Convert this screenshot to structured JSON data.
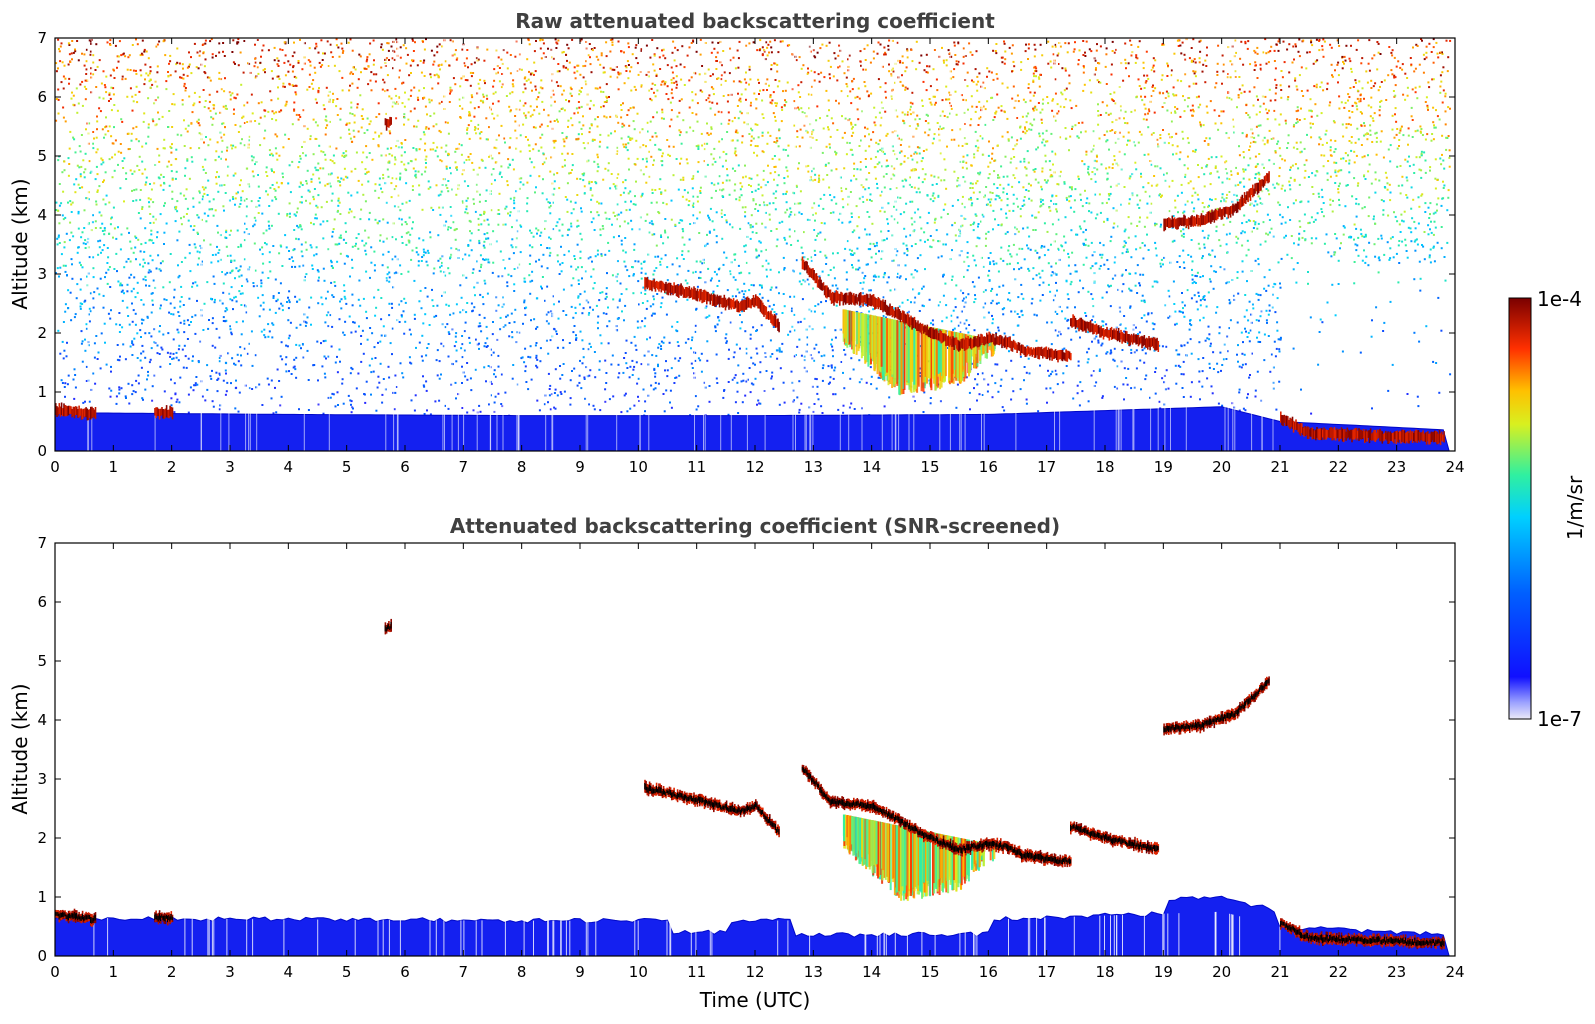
{
  "chart_data": [
    {
      "type": "heatmap",
      "title": "Raw attenuated backscattering coefficient",
      "xlabel": "",
      "ylabel": "Altitude (km)",
      "xlim": [
        0,
        24
      ],
      "ylim": [
        0,
        7
      ],
      "x_ticks": [
        "0",
        "1",
        "2",
        "3",
        "4",
        "5",
        "6",
        "7",
        "8",
        "9",
        "10",
        "11",
        "12",
        "13",
        "14",
        "15",
        "16",
        "17",
        "18",
        "19",
        "20",
        "21",
        "22",
        "23",
        "24"
      ],
      "y_ticks": [
        "0",
        "1",
        "2",
        "3",
        "4",
        "5",
        "6",
        "7"
      ],
      "features": {
        "boundary_layer": [
          [
            0,
            0.65
          ],
          [
            4,
            0.62
          ],
          [
            8,
            0.6
          ],
          [
            12,
            0.6
          ],
          [
            16,
            0.62
          ],
          [
            20,
            0.75
          ],
          [
            21,
            0.5
          ],
          [
            24,
            0.35
          ]
        ],
        "layers": [
          {
            "name": "early-aerosol",
            "points": [
              [
                0,
                0.7
              ],
              [
                0.7,
                0.62
              ]
            ]
          },
          {
            "name": "aerosol-2h",
            "points": [
              [
                1.7,
                0.65
              ],
              [
                2.0,
                0.65
              ]
            ]
          },
          {
            "name": "isolated-5.5km",
            "points": [
              [
                5.65,
                5.55
              ],
              [
                5.75,
                5.58
              ]
            ]
          },
          {
            "name": "cloud-10-12h",
            "points": [
              [
                10.1,
                2.85
              ],
              [
                11.0,
                2.65
              ],
              [
                11.7,
                2.45
              ],
              [
                12.0,
                2.55
              ],
              [
                12.4,
                2.1
              ]
            ]
          },
          {
            "name": "cloud-13-17h",
            "points": [
              [
                12.8,
                3.2
              ],
              [
                13.3,
                2.6
              ],
              [
                14.0,
                2.55
              ],
              [
                15.0,
                2.0
              ],
              [
                15.5,
                1.8
              ],
              [
                16.0,
                1.9
              ],
              [
                16.3,
                1.85
              ],
              [
                16.6,
                1.7
              ],
              [
                17.4,
                1.6
              ]
            ]
          },
          {
            "name": "cloud-17-19h",
            "points": [
              [
                17.4,
                2.2
              ],
              [
                18.0,
                2.0
              ],
              [
                18.9,
                1.8
              ]
            ]
          },
          {
            "name": "cloud-19-21h",
            "points": [
              [
                19.0,
                3.85
              ],
              [
                19.6,
                3.9
              ],
              [
                20.2,
                4.1
              ],
              [
                20.8,
                4.65
              ]
            ]
          },
          {
            "name": "aerosol-21-24h",
            "points": [
              [
                21.0,
                0.55
              ],
              [
                21.5,
                0.3
              ],
              [
                23.8,
                0.22
              ]
            ]
          }
        ],
        "precip_curtain": [
          [
            13.5,
            1.8
          ],
          [
            14.5,
            0.9
          ],
          [
            15.5,
            1.1
          ],
          [
            16.0,
            1.6
          ]
        ]
      }
    },
    {
      "type": "heatmap",
      "title": "Attenuated backscattering coefficient (SNR-screened)",
      "xlabel": "Time (UTC)",
      "ylabel": "Altitude (km)",
      "xlim": [
        0,
        24
      ],
      "ylim": [
        0,
        7
      ],
      "x_ticks": [
        "0",
        "1",
        "2",
        "3",
        "4",
        "5",
        "6",
        "7",
        "8",
        "9",
        "10",
        "11",
        "12",
        "13",
        "14",
        "15",
        "16",
        "17",
        "18",
        "19",
        "20",
        "21",
        "22",
        "23",
        "24"
      ],
      "y_ticks": [
        "0",
        "1",
        "2",
        "3",
        "4",
        "5",
        "6",
        "7"
      ],
      "features": "same structures as raw panel with low-SNR noise removed"
    }
  ],
  "colorbar": {
    "max_label": "1e-4",
    "min_label": "1e-7",
    "unit_label": "1/m/sr",
    "min_value": 1e-07,
    "max_value": 0.0001,
    "scale": "log",
    "colors": [
      "#eceaf8",
      "#1010ff",
      "#00c8ff",
      "#ffe000",
      "#ff2000",
      "#7a0000"
    ]
  }
}
